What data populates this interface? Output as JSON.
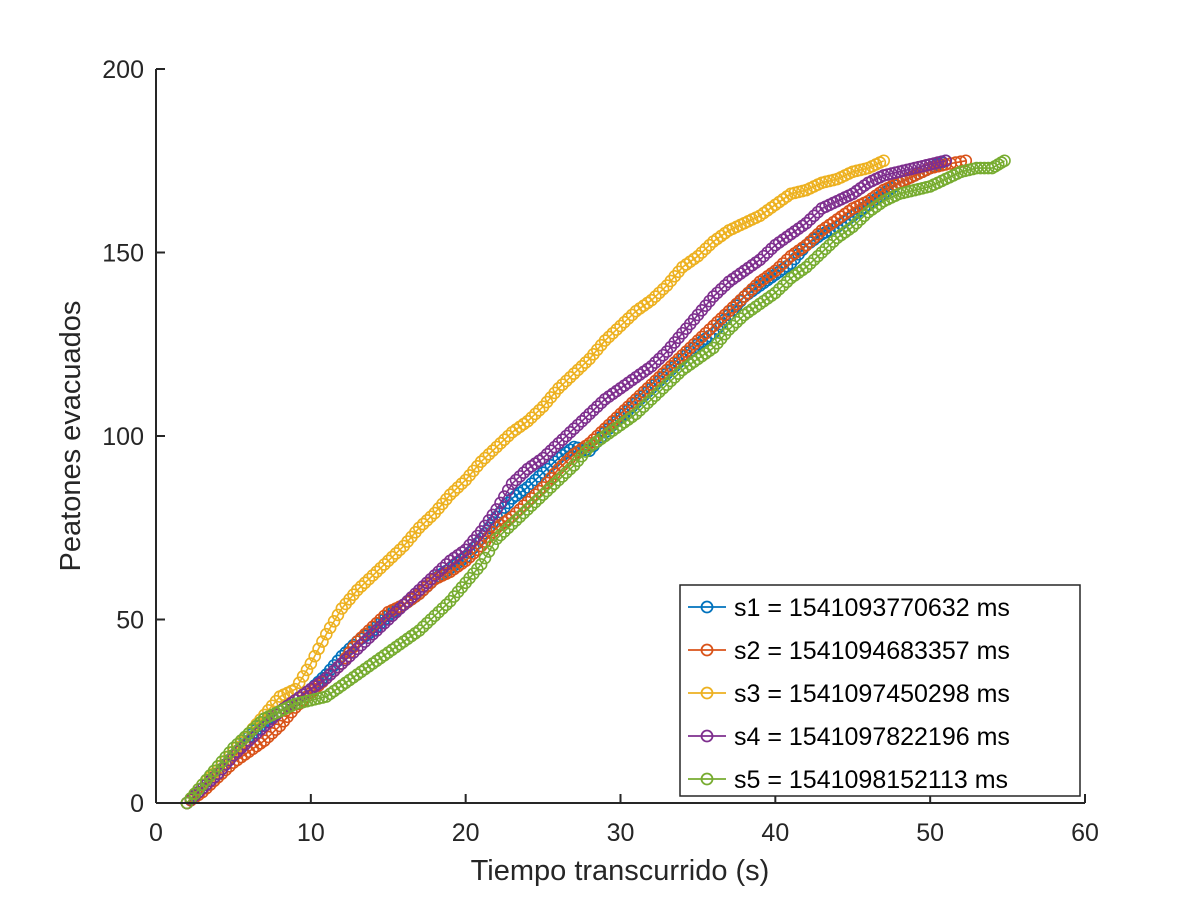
{
  "chart_data": {
    "type": "line",
    "xlabel": "Tiempo transcurrido (s)",
    "ylabel": "Peatones evacuados",
    "xlim": [
      0,
      60
    ],
    "ylim": [
      0,
      200
    ],
    "xticks": [
      0,
      10,
      20,
      30,
      40,
      50,
      60
    ],
    "yticks": [
      0,
      50,
      100,
      150,
      200
    ],
    "grid": false,
    "marker": "circle",
    "legend_position": "bottom-right",
    "series": [
      {
        "name": "s1 = 1541093770632 ms",
        "color": "#0072BD",
        "points": [
          [
            2,
            0
          ],
          [
            3,
            4
          ],
          [
            4,
            8
          ],
          [
            5,
            13
          ],
          [
            6,
            18
          ],
          [
            7,
            22
          ],
          [
            8,
            25
          ],
          [
            9,
            28
          ],
          [
            10,
            31
          ],
          [
            11,
            35
          ],
          [
            12,
            40
          ],
          [
            13,
            44
          ],
          [
            14,
            47
          ],
          [
            15,
            51
          ],
          [
            16,
            54
          ],
          [
            17,
            57
          ],
          [
            18,
            61
          ],
          [
            19,
            64
          ],
          [
            20,
            67
          ],
          [
            21,
            72
          ],
          [
            22,
            78
          ],
          [
            23,
            83
          ],
          [
            24,
            86
          ],
          [
            25,
            90
          ],
          [
            26,
            94
          ],
          [
            27,
            97
          ],
          [
            28,
            96
          ],
          [
            29,
            101
          ],
          [
            30,
            105
          ],
          [
            31,
            109
          ],
          [
            32,
            113
          ],
          [
            33,
            117
          ],
          [
            34,
            121
          ],
          [
            35,
            125
          ],
          [
            36,
            128
          ],
          [
            37,
            133
          ],
          [
            38,
            138
          ],
          [
            39,
            141
          ],
          [
            40,
            144
          ],
          [
            41,
            147
          ],
          [
            42,
            152
          ],
          [
            43,
            155
          ],
          [
            44,
            157
          ],
          [
            45,
            160
          ],
          [
            46,
            163
          ],
          [
            47,
            166
          ],
          [
            48,
            169
          ],
          [
            49,
            171
          ],
          [
            50,
            173
          ],
          [
            51,
            175
          ]
        ]
      },
      {
        "name": "s2 = 1541094683357 ms",
        "color": "#D95319",
        "points": [
          [
            2,
            0
          ],
          [
            3,
            3
          ],
          [
            4,
            7
          ],
          [
            5,
            11
          ],
          [
            6,
            14
          ],
          [
            7,
            17
          ],
          [
            8,
            21
          ],
          [
            9,
            26
          ],
          [
            10,
            30
          ],
          [
            11,
            34
          ],
          [
            12,
            38
          ],
          [
            13,
            44
          ],
          [
            14,
            48
          ],
          [
            15,
            52
          ],
          [
            16,
            54
          ],
          [
            17,
            57
          ],
          [
            18,
            61
          ],
          [
            19,
            63
          ],
          [
            20,
            66
          ],
          [
            21,
            70
          ],
          [
            22,
            75
          ],
          [
            23,
            78
          ],
          [
            24,
            82
          ],
          [
            25,
            86
          ],
          [
            26,
            91
          ],
          [
            27,
            95
          ],
          [
            28,
            98
          ],
          [
            29,
            102
          ],
          [
            30,
            106
          ],
          [
            31,
            110
          ],
          [
            32,
            114
          ],
          [
            33,
            118
          ],
          [
            34,
            122
          ],
          [
            35,
            126
          ],
          [
            36,
            130
          ],
          [
            37,
            134
          ],
          [
            38,
            138
          ],
          [
            39,
            142
          ],
          [
            40,
            145
          ],
          [
            41,
            149
          ],
          [
            42,
            152
          ],
          [
            43,
            156
          ],
          [
            44,
            159
          ],
          [
            45,
            162
          ],
          [
            46,
            164
          ],
          [
            47,
            167
          ],
          [
            48,
            169
          ],
          [
            49,
            171
          ],
          [
            50,
            173
          ],
          [
            51,
            174
          ],
          [
            52.3,
            175
          ]
        ]
      },
      {
        "name": "s3 = 1541097450298 ms",
        "color": "#EDB120",
        "points": [
          [
            2,
            0
          ],
          [
            3,
            5
          ],
          [
            4,
            9
          ],
          [
            5,
            14
          ],
          [
            6,
            19
          ],
          [
            7,
            24
          ],
          [
            8,
            29
          ],
          [
            9,
            31
          ],
          [
            10,
            38
          ],
          [
            11,
            46
          ],
          [
            12,
            53
          ],
          [
            13,
            58
          ],
          [
            14,
            62
          ],
          [
            15,
            66
          ],
          [
            16,
            70
          ],
          [
            17,
            75
          ],
          [
            18,
            79
          ],
          [
            19,
            84
          ],
          [
            20,
            88
          ],
          [
            21,
            93
          ],
          [
            22,
            97
          ],
          [
            23,
            101
          ],
          [
            24,
            104
          ],
          [
            25,
            108
          ],
          [
            26,
            113
          ],
          [
            27,
            117
          ],
          [
            28,
            121
          ],
          [
            29,
            126
          ],
          [
            30,
            130
          ],
          [
            31,
            134
          ],
          [
            32,
            137
          ],
          [
            33,
            141
          ],
          [
            34,
            146
          ],
          [
            35,
            149
          ],
          [
            36,
            153
          ],
          [
            37,
            156
          ],
          [
            38,
            158
          ],
          [
            39,
            160
          ],
          [
            40,
            163
          ],
          [
            41,
            166
          ],
          [
            42,
            167
          ],
          [
            43,
            169
          ],
          [
            44,
            170
          ],
          [
            45,
            172
          ],
          [
            46,
            173
          ],
          [
            47,
            175
          ]
        ]
      },
      {
        "name": "s4 = 1541097822196 ms",
        "color": "#7E2F8E",
        "points": [
          [
            2,
            0
          ],
          [
            3,
            4
          ],
          [
            4,
            8
          ],
          [
            5,
            13
          ],
          [
            6,
            17
          ],
          [
            7,
            21
          ],
          [
            8,
            25
          ],
          [
            9,
            28
          ],
          [
            10,
            31
          ],
          [
            11,
            34
          ],
          [
            12,
            38
          ],
          [
            13,
            42
          ],
          [
            14,
            46
          ],
          [
            15,
            50
          ],
          [
            16,
            54
          ],
          [
            17,
            58
          ],
          [
            18,
            62
          ],
          [
            19,
            66
          ],
          [
            20,
            69
          ],
          [
            21,
            74
          ],
          [
            22,
            80
          ],
          [
            23,
            87
          ],
          [
            24,
            91
          ],
          [
            25,
            94
          ],
          [
            26,
            98
          ],
          [
            27,
            102
          ],
          [
            28,
            106
          ],
          [
            29,
            110
          ],
          [
            30,
            113
          ],
          [
            31,
            116
          ],
          [
            32,
            119
          ],
          [
            33,
            123
          ],
          [
            34,
            128
          ],
          [
            35,
            133
          ],
          [
            36,
            138
          ],
          [
            37,
            142
          ],
          [
            38,
            145
          ],
          [
            39,
            148
          ],
          [
            40,
            152
          ],
          [
            41,
            155
          ],
          [
            42,
            158
          ],
          [
            43,
            162
          ],
          [
            44,
            164
          ],
          [
            45,
            166
          ],
          [
            46,
            169
          ],
          [
            47,
            171
          ],
          [
            48,
            172
          ],
          [
            49,
            173
          ],
          [
            50,
            174
          ],
          [
            51,
            175
          ]
        ]
      },
      {
        "name": "s5 = 1541098152113 ms",
        "color": "#77AC30",
        "points": [
          [
            2,
            0
          ],
          [
            3,
            5
          ],
          [
            4,
            10
          ],
          [
            5,
            15
          ],
          [
            6,
            19
          ],
          [
            7,
            23
          ],
          [
            8,
            25
          ],
          [
            9,
            27
          ],
          [
            10,
            28
          ],
          [
            11,
            29
          ],
          [
            12,
            32
          ],
          [
            13,
            35
          ],
          [
            14,
            38
          ],
          [
            15,
            41
          ],
          [
            16,
            44
          ],
          [
            17,
            47
          ],
          [
            18,
            51
          ],
          [
            19,
            55
          ],
          [
            20,
            60
          ],
          [
            21,
            65
          ],
          [
            22,
            72
          ],
          [
            23,
            76
          ],
          [
            24,
            80
          ],
          [
            25,
            84
          ],
          [
            26,
            88
          ],
          [
            27,
            92
          ],
          [
            28,
            97
          ],
          [
            29,
            100
          ],
          [
            30,
            103
          ],
          [
            31,
            106
          ],
          [
            32,
            110
          ],
          [
            33,
            114
          ],
          [
            34,
            118
          ],
          [
            35,
            121
          ],
          [
            36,
            124
          ],
          [
            37,
            129
          ],
          [
            38,
            133
          ],
          [
            39,
            136
          ],
          [
            40,
            139
          ],
          [
            41,
            143
          ],
          [
            42,
            146
          ],
          [
            43,
            150
          ],
          [
            44,
            154
          ],
          [
            45,
            157
          ],
          [
            46,
            161
          ],
          [
            47,
            164
          ],
          [
            48,
            166
          ],
          [
            49,
            167
          ],
          [
            50,
            168
          ],
          [
            51,
            170
          ],
          [
            52,
            172
          ],
          [
            53,
            173
          ],
          [
            54,
            173
          ],
          [
            54.8,
            175
          ]
        ]
      }
    ]
  }
}
